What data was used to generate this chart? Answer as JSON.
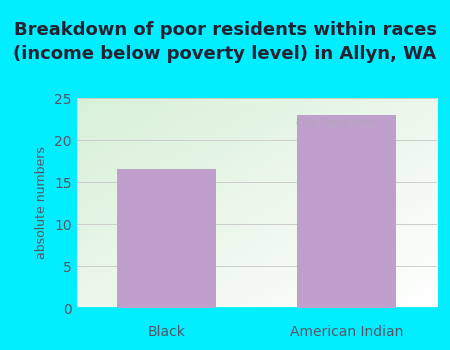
{
  "title": "Breakdown of poor residents within races\n(income below poverty level) in Allyn, WA",
  "categories": [
    "Black",
    "American Indian"
  ],
  "values": [
    16.5,
    23.0
  ],
  "bar_color": "#bf9fcc",
  "ylabel": "absolute numbers",
  "ylim": [
    0,
    25
  ],
  "yticks": [
    0,
    5,
    10,
    15,
    20,
    25
  ],
  "background_outer": "#00eeff",
  "background_inner_grad_topleft": "#d8f0d8",
  "background_inner_grad_bottomright": "#ffffff",
  "grid_color": "#cccccc",
  "title_fontsize": 13,
  "ylabel_fontsize": 9,
  "tick_fontsize": 10,
  "title_color": "#222233",
  "tick_color": "#555566",
  "ylabel_color": "#555566"
}
